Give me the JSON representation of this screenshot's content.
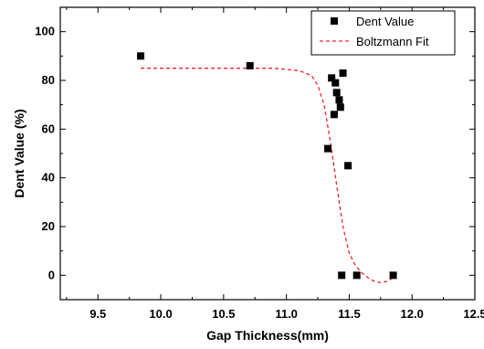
{
  "chart_data": {
    "type": "scatter",
    "title": "",
    "xlabel": "Gap Thickness(mm)",
    "ylabel": "Dent Value (%)",
    "xlim": [
      9.2,
      12.5
    ],
    "ylim": [
      -10,
      110
    ],
    "x_ticks": [
      9.5,
      10.0,
      10.5,
      11.0,
      11.5,
      12.0,
      12.5
    ],
    "x_tick_labels": [
      "9.5",
      "10.0",
      "10.5",
      "11.0",
      "11.5",
      "12.0",
      "12.5"
    ],
    "y_ticks": [
      0,
      20,
      40,
      60,
      80,
      100
    ],
    "y_tick_labels": [
      "0",
      "20",
      "40",
      "60",
      "80",
      "100"
    ],
    "grid": false,
    "legend_position": "top-right",
    "series": [
      {
        "name": "Dent Value",
        "kind": "scatter",
        "marker": "square",
        "color": "#000000",
        "x": [
          9.84,
          10.71,
          11.33,
          11.36,
          11.38,
          11.39,
          11.4,
          11.42,
          11.43,
          11.45,
          11.44,
          11.49,
          11.56,
          11.85
        ],
        "y": [
          90,
          86,
          52,
          81,
          66,
          79,
          75,
          72,
          69,
          83,
          0,
          45,
          0,
          0
        ]
      },
      {
        "name": "Boltzmann Fit",
        "kind": "line",
        "style": "dashed",
        "color": "#e8262e",
        "x": [
          9.84,
          10.2,
          10.6,
          10.9,
          11.1,
          11.2,
          11.25,
          11.3,
          11.35,
          11.4,
          11.45,
          11.5,
          11.55,
          11.6,
          11.65,
          11.7,
          11.75,
          11.8,
          11.85
        ],
        "y": [
          85,
          85,
          85,
          85,
          84,
          82,
          78,
          70,
          55,
          37,
          20,
          9,
          4,
          1,
          -1,
          -2.5,
          -3,
          -2.5,
          -1
        ]
      }
    ]
  }
}
